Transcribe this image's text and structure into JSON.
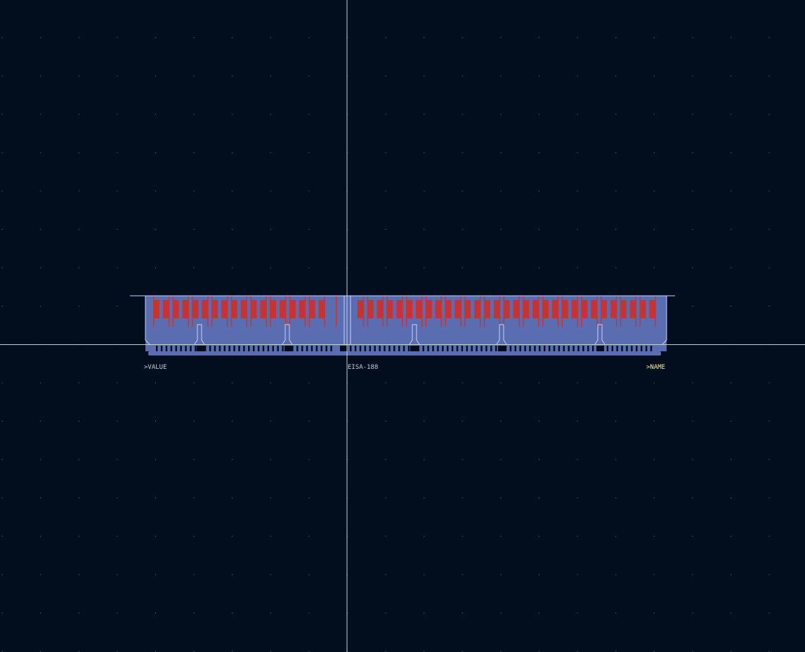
{
  "labels": {
    "value": ">VALUE",
    "package": "EISA-188",
    "name": ">NAME"
  }
}
